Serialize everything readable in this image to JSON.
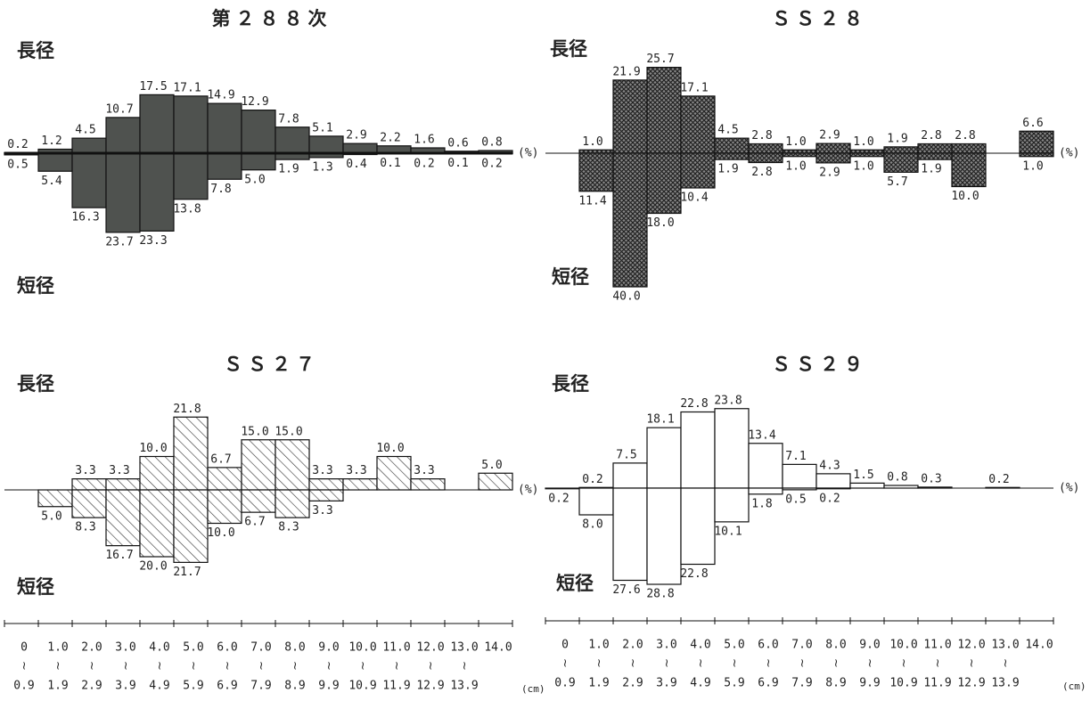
{
  "chart_data": [
    {
      "type": "bar",
      "title": "第２８８次",
      "unit": "(%)",
      "color": "#4f524f",
      "fill_style": "solid",
      "series": [
        {
          "name": "長径",
          "values": [
            0.2,
            1.2,
            4.5,
            10.7,
            17.5,
            17.1,
            14.9,
            12.9,
            7.8,
            5.1,
            2.9,
            2.2,
            1.6,
            0.6,
            0.8
          ],
          "value_labels": [
            "0.2",
            "1.2",
            "4.5",
            "10.7",
            "17.5",
            "17.1",
            "14.9",
            "12.9",
            "7.8",
            "5.1",
            "2.9",
            "2.2",
            "1.6",
            "0.6",
            "0.8"
          ]
        },
        {
          "name": "短径",
          "values": [
            0.5,
            5.4,
            16.3,
            23.7,
            23.3,
            13.8,
            7.8,
            5.0,
            1.9,
            1.3,
            0.4,
            0.1,
            0.2,
            0.1,
            0.2
          ],
          "value_labels": [
            "0.5",
            "5.4",
            "16.3",
            "23.7",
            "23.3",
            "13.8",
            "7.8",
            "5.0",
            "1.9",
            "1.3",
            "0.4",
            "0.1",
            "0.2",
            "0.1",
            "0.2"
          ]
        }
      ]
    },
    {
      "type": "bar",
      "title": "ＳＳ２８",
      "unit": "(%)",
      "color": "#2e2e2e",
      "fill_style": "crosshatch",
      "series": [
        {
          "name": "長径",
          "values": [
            null,
            1.0,
            21.9,
            25.7,
            17.1,
            4.5,
            2.8,
            1.0,
            2.9,
            1.0,
            1.9,
            2.8,
            2.8,
            null,
            6.6
          ],
          "value_labels": [
            null,
            "1.0",
            "21.9",
            "25.7",
            "17.1",
            "4.5",
            "2.8",
            "1.0",
            "2.9",
            "1.0",
            "1.9",
            "2.8",
            "2.8",
            null,
            "6.6"
          ]
        },
        {
          "name": "短径",
          "values": [
            null,
            11.4,
            40.0,
            18.0,
            10.4,
            1.9,
            2.8,
            1.0,
            2.9,
            1.0,
            5.7,
            1.9,
            10.0,
            null,
            1.0
          ],
          "value_labels": [
            null,
            "11.4",
            "40.0",
            "18.0",
            "10.4",
            "1.9",
            "2.8",
            "1.0",
            "2.9",
            "1.0",
            "5.7",
            "1.9",
            "10.0",
            null,
            "1.0"
          ]
        }
      ]
    },
    {
      "type": "bar",
      "title": "ＳＳ２７",
      "unit": "(%)",
      "color": "#333333",
      "fill_style": "hatch",
      "series": [
        {
          "name": "長径",
          "values": [
            null,
            null,
            3.3,
            3.3,
            10.0,
            21.8,
            6.7,
            15.0,
            15.0,
            3.3,
            3.3,
            10.0,
            3.3,
            null,
            5.0
          ],
          "value_labels": [
            null,
            null,
            "3.3",
            "3.3",
            "10.0",
            "21.8",
            "6.7",
            "15.0",
            "15.0",
            "3.3",
            "3.3",
            "10.0",
            "3.3",
            null,
            "5.0"
          ]
        },
        {
          "name": "短径",
          "values": [
            null,
            5.0,
            8.3,
            16.7,
            20.0,
            21.7,
            10.0,
            6.7,
            8.3,
            3.3,
            null,
            null,
            null,
            null,
            null
          ],
          "value_labels": [
            null,
            "5.0",
            "8.3",
            "16.7",
            "20.0",
            "21.7",
            "10.0",
            "6.7",
            "8.3",
            "3.3",
            null,
            null,
            null,
            null,
            null
          ]
        }
      ],
      "x_labels": {
        "from": [
          "0",
          "1.0",
          "2.0",
          "3.0",
          "4.0",
          "5.0",
          "6.0",
          "7.0",
          "8.0",
          "9.0",
          "10.0",
          "11.0",
          "12.0",
          "13.0",
          "14.0"
        ],
        "sep": "≀",
        "to": [
          "0.9",
          "1.9",
          "2.9",
          "3.9",
          "4.9",
          "5.9",
          "6.9",
          "7.9",
          "8.9",
          "9.9",
          "10.9",
          "11.9",
          "12.9",
          "13.9"
        ],
        "unit": "(cm)"
      }
    },
    {
      "type": "bar",
      "title": "ＳＳ２９",
      "unit": "(%)",
      "color": "#ffffff",
      "fill_style": "solid",
      "series": [
        {
          "name": "長径",
          "values": [
            null,
            0.2,
            7.5,
            18.1,
            22.8,
            23.8,
            13.4,
            7.1,
            4.3,
            1.5,
            0.8,
            0.3,
            null,
            0.2,
            null
          ],
          "value_labels": [
            null,
            "0.2",
            "7.5",
            "18.1",
            "22.8",
            "23.8",
            "13.4",
            "7.1",
            "4.3",
            "1.5",
            "0.8",
            "0.3",
            null,
            "0.2",
            null
          ]
        },
        {
          "name": "短径",
          "values": [
            0.2,
            8.0,
            27.6,
            28.8,
            22.8,
            10.1,
            1.8,
            0.5,
            0.2,
            null,
            null,
            null,
            null,
            null,
            null
          ],
          "value_labels": [
            "0.2",
            "8.0",
            "27.6",
            "28.8",
            "22.8",
            "10.1",
            "1.8",
            "0.5",
            "0.2",
            null,
            null,
            null,
            null,
            null,
            null
          ]
        }
      ],
      "x_labels": {
        "from": [
          "0",
          "1.0",
          "2.0",
          "3.0",
          "4.0",
          "5.0",
          "6.0",
          "7.0",
          "8.0",
          "9.0",
          "10.0",
          "11.0",
          "12.0",
          "13.0",
          "14.0"
        ],
        "sep": "≀",
        "to": [
          "0.9",
          "1.9",
          "2.9",
          "3.9",
          "4.9",
          "5.9",
          "6.9",
          "7.9",
          "8.9",
          "9.9",
          "10.9",
          "11.9",
          "12.9",
          "13.9"
        ],
        "unit": "(cm)"
      }
    }
  ]
}
